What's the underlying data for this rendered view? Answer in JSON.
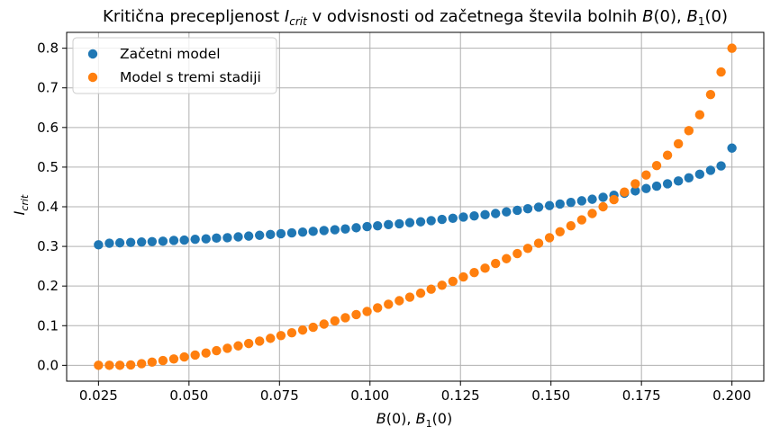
{
  "chart_data": {
    "type": "scatter",
    "title": {
      "prefix": "Kritična precepljenost ",
      "i_main": "I",
      "i_sub": "crit",
      "middle": " v odvisnosti od začetnega števila bolnih ",
      "b_main": "B",
      "b_arg": "(0), ",
      "b1_main": "B",
      "b1_sub": "1",
      "b1_arg": "(0)"
    },
    "xlabel": {
      "b_main": "B",
      "b_arg": "(0), ",
      "b1_main": "B",
      "b1_sub": "1",
      "b1_arg": "(0)"
    },
    "ylabel": {
      "main": "I",
      "sub": "crit"
    },
    "xlim": [
      0.0162,
      0.2088
    ],
    "ylim": [
      -0.04,
      0.84
    ],
    "xticks": [
      "0.025",
      "0.050",
      "0.075",
      "0.100",
      "0.125",
      "0.150",
      "0.175",
      "0.200"
    ],
    "yticks": [
      "0.0",
      "0.1",
      "0.2",
      "0.3",
      "0.4",
      "0.5",
      "0.6",
      "0.7",
      "0.8"
    ],
    "grid": true,
    "legend_position": "top-left",
    "x": [
      0.025,
      0.028,
      0.0309,
      0.0339,
      0.0369,
      0.0398,
      0.0428,
      0.0458,
      0.0487,
      0.0517,
      0.0547,
      0.0576,
      0.0606,
      0.0636,
      0.0665,
      0.0695,
      0.0725,
      0.0754,
      0.0784,
      0.0814,
      0.0843,
      0.0873,
      0.0903,
      0.0932,
      0.0962,
      0.0992,
      0.1021,
      0.1051,
      0.1081,
      0.111,
      0.114,
      0.1169,
      0.1199,
      0.1229,
      0.1258,
      0.1288,
      0.1318,
      0.1347,
      0.1377,
      0.1407,
      0.1436,
      0.1466,
      0.1496,
      0.1525,
      0.1555,
      0.1585,
      0.1614,
      0.1644,
      0.1674,
      0.1703,
      0.1733,
      0.1763,
      0.1792,
      0.1822,
      0.1852,
      0.1881,
      0.1911,
      0.1941,
      0.197,
      0.2
    ],
    "series": [
      {
        "name": "Začetni model",
        "color": "#1f77b4",
        "values": [
          0.304,
          0.308,
          0.309,
          0.31,
          0.311,
          0.312,
          0.313,
          0.315,
          0.316,
          0.318,
          0.319,
          0.321,
          0.322,
          0.324,
          0.326,
          0.328,
          0.33,
          0.332,
          0.334,
          0.336,
          0.338,
          0.34,
          0.342,
          0.344,
          0.347,
          0.35,
          0.352,
          0.355,
          0.357,
          0.36,
          0.362,
          0.365,
          0.368,
          0.371,
          0.374,
          0.377,
          0.38,
          0.383,
          0.387,
          0.391,
          0.395,
          0.399,
          0.403,
          0.407,
          0.411,
          0.415,
          0.419,
          0.424,
          0.429,
          0.434,
          0.44,
          0.446,
          0.452,
          0.458,
          0.465,
          0.473,
          0.482,
          0.492,
          0.503,
          0.548
        ]
      },
      {
        "name": "Model s tremi stadiji",
        "color": "#ff7f0e",
        "values": [
          0.0,
          0.0,
          0.0,
          0.001,
          0.004,
          0.008,
          0.012,
          0.016,
          0.021,
          0.026,
          0.031,
          0.037,
          0.043,
          0.049,
          0.055,
          0.061,
          0.068,
          0.075,
          0.082,
          0.089,
          0.096,
          0.104,
          0.112,
          0.12,
          0.128,
          0.136,
          0.145,
          0.154,
          0.163,
          0.172,
          0.182,
          0.192,
          0.202,
          0.212,
          0.223,
          0.234,
          0.245,
          0.257,
          0.269,
          0.282,
          0.295,
          0.308,
          0.322,
          0.337,
          0.352,
          0.367,
          0.383,
          0.4,
          0.418,
          0.437,
          0.458,
          0.48,
          0.504,
          0.53,
          0.559,
          0.592,
          0.632,
          0.683,
          0.74,
          0.8
        ]
      }
    ]
  }
}
